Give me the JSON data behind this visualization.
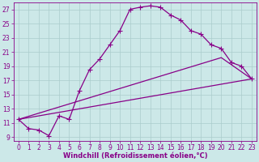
{
  "xlabel": "Windchill (Refroidissement éolien,°C)",
  "bg_color": "#cce8e8",
  "line_color": "#880088",
  "grid_color": "#aacccc",
  "xlim": [
    -0.5,
    23.5
  ],
  "ylim": [
    8.5,
    28
  ],
  "xticks": [
    0,
    1,
    2,
    3,
    4,
    5,
    6,
    7,
    8,
    9,
    10,
    11,
    12,
    13,
    14,
    15,
    16,
    17,
    18,
    19,
    20,
    21,
    22,
    23
  ],
  "yticks": [
    9,
    11,
    13,
    15,
    17,
    19,
    21,
    23,
    25,
    27
  ],
  "curve_x": [
    0,
    1,
    2,
    3,
    4,
    5,
    6,
    7,
    8,
    9,
    10,
    11,
    12,
    13,
    14,
    15,
    16,
    17,
    18,
    19,
    20,
    21,
    22,
    23
  ],
  "curve_y": [
    11.5,
    10.2,
    10.0,
    9.2,
    12.0,
    11.5,
    15.5,
    18.5,
    20.0,
    22.0,
    24.0,
    27.0,
    27.3,
    27.5,
    27.3,
    26.2,
    25.5,
    24.0,
    23.5,
    22.0,
    21.5,
    19.5,
    19.0,
    17.2
  ],
  "line2_x": [
    0,
    23
  ],
  "line2_y": [
    11.5,
    17.2
  ],
  "line3_x": [
    0,
    20,
    23
  ],
  "line3_y": [
    11.5,
    20.2,
    17.2
  ],
  "marker_style": "+",
  "marker_size": 4,
  "line_width": 0.9,
  "font_color": "#880088",
  "tick_fontsize": 5.5,
  "label_fontsize": 6.0
}
